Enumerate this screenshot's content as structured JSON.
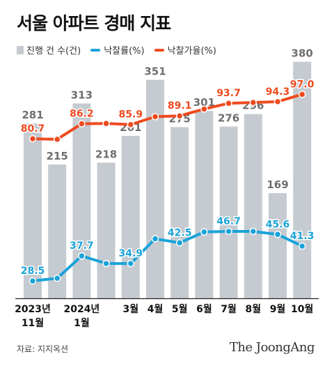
{
  "title": "서울 아파트 경매 지표",
  "legend": {
    "bars": "진행 건 수(건)",
    "rate": "낙찰률(%)",
    "price_rate": "낙찰가율(%)"
  },
  "colors": {
    "bar": "#c5cbd0",
    "bar_label": "#6f6f6f",
    "rate": "#1aa3d9",
    "price_rate": "#ee4a1e"
  },
  "source": "자료: 지지옥션",
  "brand": "The JoongAng",
  "chart_data": {
    "type": "bar",
    "categories": [
      [
        "2023년",
        "11월"
      ],
      [
        "",
        ""
      ],
      [
        "2024년",
        "1월"
      ],
      [
        "",
        ""
      ],
      [
        "3월",
        ""
      ],
      [
        "4월",
        ""
      ],
      [
        "5월",
        ""
      ],
      [
        "6월",
        ""
      ],
      [
        "7월",
        ""
      ],
      [
        "8월",
        ""
      ],
      [
        "9월",
        ""
      ],
      [
        "10월",
        ""
      ]
    ],
    "series": [
      {
        "name": "진행 건 수(건)",
        "kind": "bar",
        "values": [
          281,
          215,
          313,
          218,
          261,
          351,
          275,
          301,
          276,
          296,
          169,
          380
        ],
        "labels": [
          "281",
          "215",
          "313",
          "218",
          "261",
          "351",
          "275",
          "301",
          "276",
          "296",
          "169",
          "380"
        ]
      },
      {
        "name": "낙찰가율(%)",
        "kind": "line",
        "values": [
          80.7,
          80.5,
          86.2,
          86.3,
          85.9,
          88.8,
          89.1,
          91.6,
          93.7,
          94.0,
          94.3,
          97.0
        ],
        "labels": [
          "80.7",
          "",
          "86.2",
          "",
          "85.9",
          "",
          "89.1",
          "",
          "93.7",
          "",
          "94.3",
          "97.0"
        ]
      },
      {
        "name": "낙찰률(%)",
        "kind": "line",
        "values": [
          28.5,
          29.5,
          37.7,
          34.9,
          34.9,
          44.0,
          42.5,
          46.5,
          46.7,
          46.7,
          45.6,
          41.3
        ],
        "labels": [
          "28.5",
          "",
          "37.7",
          "",
          "34.9",
          "",
          "42.5",
          "",
          "46.7",
          "",
          "45.6",
          "41.3"
        ]
      }
    ]
  }
}
